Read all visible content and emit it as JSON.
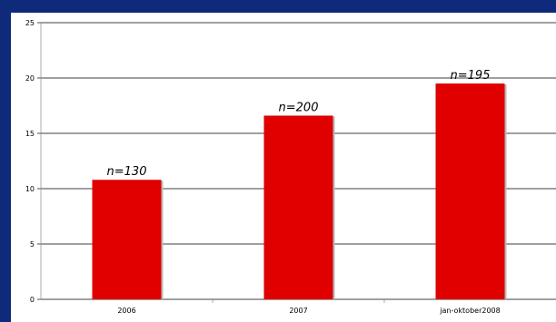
{
  "chart_data": {
    "type": "bar",
    "title": "",
    "xlabel": "",
    "ylabel": "",
    "categories": [
      "2006",
      "2007",
      "jan-oktober2008"
    ],
    "values": [
      10.8,
      16.6,
      19.5
    ],
    "data_labels": [
      "n=130",
      "n=200",
      "n=195"
    ],
    "ylim": [
      0,
      25
    ],
    "yticks": [
      0,
      5,
      10,
      15,
      20,
      25
    ],
    "grid": true,
    "legend": "none",
    "colors": {
      "bar": "#e00000",
      "bar_shadow": "#b8b8b8",
      "background": "#0f2a7a",
      "plot": "#ffffff"
    }
  }
}
